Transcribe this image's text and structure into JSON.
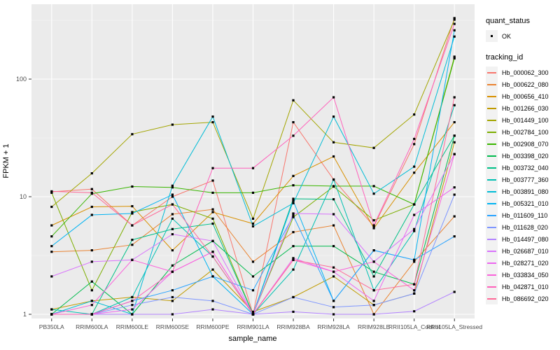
{
  "figure": {
    "ylabel": "FPKM + 1",
    "xlabel": "sample_name",
    "colors": {
      "panel_bg": "#EBEBEB",
      "grid_major": "#FFFFFF",
      "grid_minor": "#FFFFFF",
      "tick_mark": "#333333",
      "tick_text": "#4D4D4D",
      "marker": "#000000",
      "legend_key_bg": "#F2F2F2"
    }
  },
  "legend": {
    "quant_status_title": "quant_status",
    "quant_status_value": "OK",
    "tracking_id_title": "tracking_id"
  },
  "chart_data": {
    "type": "line",
    "title": "",
    "xlabel": "sample_name",
    "ylabel": "FPKM + 1",
    "y_scale": "log10",
    "y_ticks": [
      1,
      10,
      100
    ],
    "y_minor_ticks": [
      3.162,
      31.62,
      316.2
    ],
    "ylim": [
      0.65,
      440
    ],
    "grid": true,
    "legend_position": "right",
    "point_marker": "small black square (quant_status OK)",
    "categories": [
      "PB350LA",
      "RRIM600LA",
      "RRIM600LE",
      "RRIM600SE",
      "RRIM600PE",
      "RRIM901LA",
      "RRIM928BA",
      "RRIM928LA",
      "RRIM928LE",
      "RRII105LA_Control",
      "RRII105LA_Stressed"
    ],
    "series": [
      {
        "name": "Hb_000062_300",
        "color": "#F8766D",
        "values": [
          11,
          11.6,
          5.7,
          10,
          13.7,
          1.0,
          43,
          14,
          5.6,
          28,
          330
        ]
      },
      {
        "name": "Hb_000622_080",
        "color": "#EA8331",
        "values": [
          3.4,
          3.5,
          3.9,
          7.1,
          7.8,
          2.8,
          5.0,
          5.7,
          1.0,
          2.8,
          6.8
        ]
      },
      {
        "name": "Hb_000656_410",
        "color": "#D89000",
        "values": [
          5.7,
          8.2,
          8.3,
          3.5,
          7.4,
          5.9,
          15,
          22,
          5.4,
          16,
          43
        ]
      },
      {
        "name": "Hb_001266_030",
        "color": "#C09B00",
        "values": [
          1.1,
          1.3,
          1.4,
          1.3,
          2.4,
          1.05,
          1.4,
          2.1,
          1.2,
          1.5,
          29
        ]
      },
      {
        "name": "Hb_001449_100",
        "color": "#A3A500",
        "values": [
          8.2,
          15.8,
          34,
          41,
          43,
          6.5,
          66,
          29,
          26,
          50,
          320
        ]
      },
      {
        "name": "Hb_002784_100",
        "color": "#7CAE00",
        "values": [
          10.8,
          1.6,
          7.4,
          8.6,
          6.5,
          1.0,
          6.7,
          12.2,
          6.3,
          8.6,
          155
        ]
      },
      {
        "name": "Hb_002908_070",
        "color": "#39B600",
        "values": [
          4.6,
          10.6,
          12.2,
          12,
          10.8,
          10.8,
          12.5,
          12.3,
          12.3,
          8.6,
          150
        ]
      },
      {
        "name": "Hb_003398_020",
        "color": "#00BB4E",
        "values": [
          1.0,
          1.9,
          1.0,
          2.6,
          4.2,
          2.1,
          3.8,
          3.8,
          2.3,
          1.8,
          33
        ]
      },
      {
        "name": "Hb_003732_040",
        "color": "#00C087",
        "values": [
          1.0,
          1.0,
          4.3,
          5.3,
          5.9,
          1.0,
          9.6,
          9.5,
          2.1,
          8.6,
          33
        ]
      },
      {
        "name": "Hb_003777_360",
        "color": "#00C0B2",
        "values": [
          1.1,
          1.0,
          1.4,
          6.5,
          3.1,
          1.0,
          2.4,
          14,
          1.6,
          5.1,
          60
        ]
      },
      {
        "name": "Hb_003891_080",
        "color": "#00BCD6",
        "values": [
          1.0,
          1.3,
          1.0,
          12.4,
          48,
          5.6,
          8.8,
          48,
          10.6,
          18,
          230
        ]
      },
      {
        "name": "Hb_005321_010",
        "color": "#00B3F2",
        "values": [
          3.8,
          7.0,
          7.2,
          10.4,
          2.1,
          1.0,
          9.2,
          1.3,
          3.5,
          2.9,
          260
        ]
      },
      {
        "name": "Hb_011609_110",
        "color": "#29A3FF",
        "values": [
          1.0,
          1.0,
          1.3,
          1.6,
          2.1,
          1.6,
          6.9,
          1.3,
          3.5,
          2.9,
          4.6
        ]
      },
      {
        "name": "Hb_011628_020",
        "color": "#7E96FF",
        "values": [
          1.0,
          1.0,
          1.2,
          1.4,
          1.3,
          1.0,
          1.4,
          1.15,
          1.2,
          1.5,
          10.4
        ]
      },
      {
        "name": "Hb_014497_080",
        "color": "#B383FF",
        "values": [
          1.0,
          1.0,
          1.0,
          1.0,
          1.1,
          1.0,
          1.05,
          1.0,
          1.0,
          1.06,
          1.55
        ]
      },
      {
        "name": "Hb_026687_010",
        "color": "#D873FC",
        "values": [
          2.1,
          2.8,
          2.9,
          4.8,
          4.2,
          1.0,
          7.2,
          7.1,
          2.8,
          5.3,
          23
        ]
      },
      {
        "name": "Hb_028271_020",
        "color": "#EC67F0",
        "values": [
          1.0,
          1.0,
          1.1,
          2.3,
          3.4,
          1.0,
          3.0,
          2.3,
          1.3,
          7.0,
          12
        ]
      },
      {
        "name": "Hb_033834_050",
        "color": "#FA62DB",
        "values": [
          1.0,
          1.2,
          2.9,
          2.3,
          3.4,
          1.0,
          2.9,
          2.3,
          2.8,
          1.6,
          23
        ]
      },
      {
        "name": "Hb_042871_010",
        "color": "#FF61BB",
        "values": [
          1.0,
          1.0,
          1.3,
          2.3,
          17.5,
          17.5,
          33,
          70,
          5.7,
          31,
          295
        ]
      },
      {
        "name": "Hb_086692_020",
        "color": "#FF6A98",
        "values": [
          11.1,
          10.8,
          5.7,
          8.6,
          3.1,
          1.0,
          2.9,
          2.5,
          1.6,
          1.8,
          70
        ]
      }
    ]
  }
}
